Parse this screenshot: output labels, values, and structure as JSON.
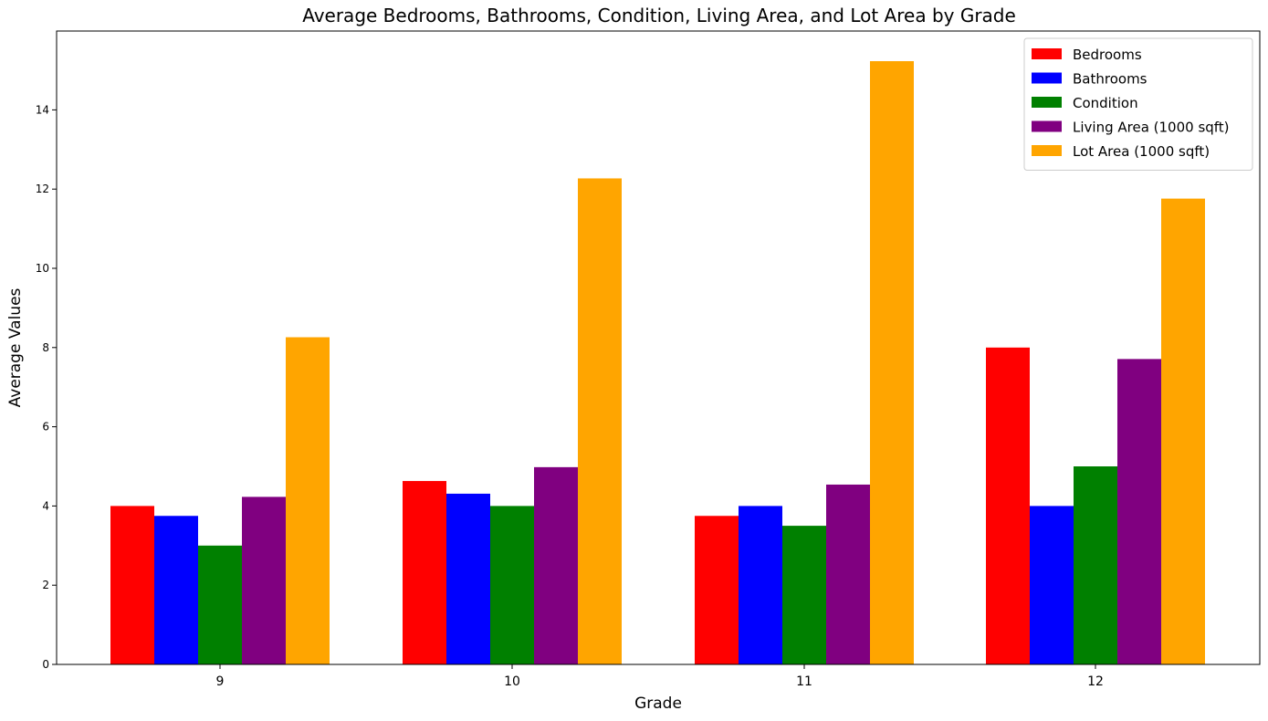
{
  "chart_data": {
    "type": "bar",
    "title": "Average Bedrooms, Bathrooms, Condition, Living Area, and Lot Area by Grade",
    "xlabel": "Grade",
    "ylabel": "Average Values",
    "categories": [
      "9",
      "10",
      "11",
      "12"
    ],
    "ylim": [
      0,
      16
    ],
    "yticks": [
      0,
      2,
      4,
      6,
      8,
      10,
      12,
      14
    ],
    "grid": false,
    "legend_position": "top-right",
    "series": [
      {
        "name": "Bedrooms",
        "color": "#ff0000",
        "values": [
          4.0,
          4.63,
          3.75,
          8.0
        ]
      },
      {
        "name": "Bathrooms",
        "color": "#0000ff",
        "values": [
          3.75,
          4.31,
          4.0,
          4.0
        ]
      },
      {
        "name": "Condition",
        "color": "#008000",
        "values": [
          3.0,
          4.0,
          3.5,
          5.0
        ]
      },
      {
        "name": "Living Area (1000 sqft)",
        "color": "#800080",
        "values": [
          4.23,
          4.98,
          4.54,
          7.71
        ]
      },
      {
        "name": "Lot Area (1000 sqft)",
        "color": "#ffa500",
        "values": [
          8.26,
          12.27,
          15.23,
          11.76
        ]
      }
    ]
  }
}
